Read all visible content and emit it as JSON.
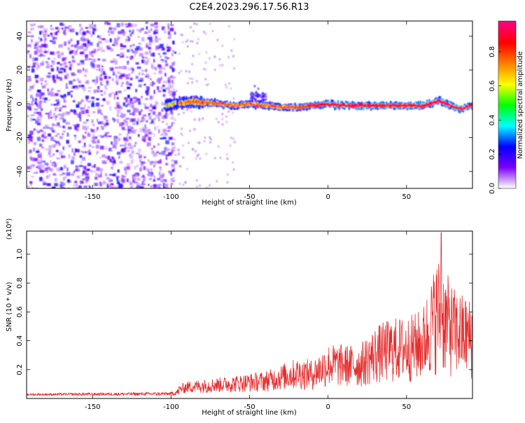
{
  "title": "C2E4.2023.296.17.56.R13",
  "chart_data": [
    {
      "type": "heatmap",
      "xlabel": "Height of straight line (km)",
      "ylabel": "Frequency (Hz)",
      "xlim": [
        -192,
        92
      ],
      "ylim": [
        -50,
        49
      ],
      "xticks": [
        -150,
        -100,
        -50,
        0,
        50
      ],
      "yticks": [
        -40,
        -20,
        0,
        20,
        40
      ],
      "colorbar": {
        "label": "Normalized spectral amplitude",
        "range": [
          0,
          0.98
        ],
        "ticks": [
          0.0,
          0.2,
          0.4,
          0.6,
          0.8
        ],
        "colors": [
          "#ffffff",
          "#7a00ff",
          "#0000ff",
          "#00ffff",
          "#00ff00",
          "#ffff00",
          "#ff7f00",
          "#ff0000",
          "#ff0080"
        ]
      },
      "line_center_hz": [
        [
          -104,
          -1
        ],
        [
          -98,
          0
        ],
        [
          -90,
          1
        ],
        [
          -80,
          1
        ],
        [
          -70,
          0
        ],
        [
          -60,
          -1
        ],
        [
          -50,
          0
        ],
        [
          -40,
          -1
        ],
        [
          -30,
          -2
        ],
        [
          -20,
          -2
        ],
        [
          -10,
          -1
        ],
        [
          0,
          0
        ],
        [
          10,
          -1
        ],
        [
          20,
          -1
        ],
        [
          30,
          -1
        ],
        [
          40,
          -1
        ],
        [
          50,
          -1
        ],
        [
          60,
          -1
        ],
        [
          65,
          0
        ],
        [
          70,
          2
        ],
        [
          75,
          0
        ],
        [
          80,
          -2
        ],
        [
          85,
          -3
        ],
        [
          90,
          -1
        ]
      ],
      "noise_band_x": [
        -192,
        -98
      ],
      "bump": {
        "x": [
          -50,
          -40
        ],
        "f_hz": 4
      }
    },
    {
      "type": "line",
      "xlabel": "Height of straight line (km)",
      "ylabel": "SNR (10 * v/v)",
      "yscale_label": "(x10⁴)",
      "xlim": [
        -192,
        92
      ],
      "ylim": [
        0,
        1.16
      ],
      "xticks": [
        -150,
        -100,
        -50,
        0,
        50
      ],
      "yticks": [
        0.2,
        0.4,
        0.6,
        0.8,
        1.0
      ],
      "color": "#e52d2d",
      "envelope": {
        "x": [
          -192,
          -100,
          -90,
          -60,
          -40,
          -20,
          -10,
          0,
          20,
          30,
          40,
          50,
          60,
          70,
          80,
          90
        ],
        "y": [
          0.03,
          0.04,
          0.1,
          0.14,
          0.17,
          0.26,
          0.25,
          0.36,
          0.35,
          0.48,
          0.54,
          0.55,
          0.6,
          0.98,
          0.75,
          0.68
        ]
      },
      "peak": {
        "x": 72,
        "y": 1.15
      }
    }
  ]
}
